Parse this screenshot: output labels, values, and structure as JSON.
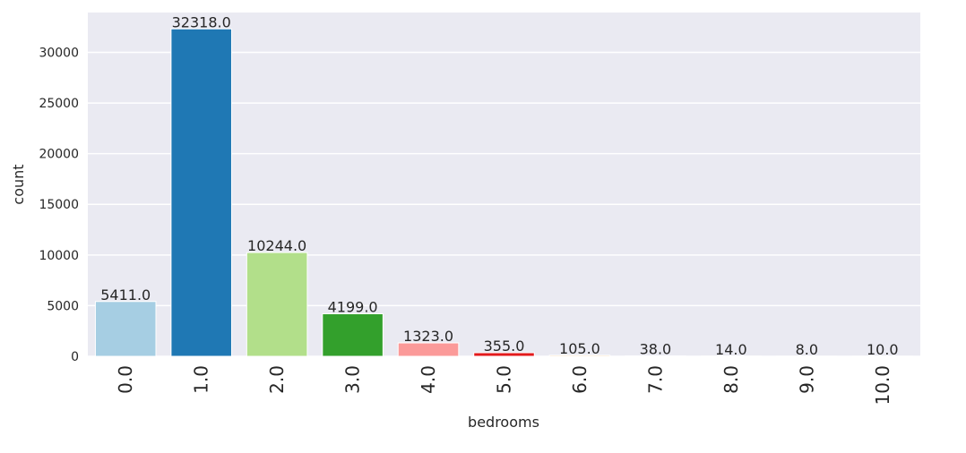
{
  "chart_data": {
    "type": "bar",
    "categories": [
      "0.0",
      "1.0",
      "2.0",
      "3.0",
      "4.0",
      "5.0",
      "6.0",
      "7.0",
      "8.0",
      "9.0",
      "10.0"
    ],
    "values": [
      5411,
      32318,
      10244,
      4199,
      1323,
      355,
      105,
      38,
      14,
      8,
      10
    ],
    "data_labels": [
      "5411.0",
      "32318.0",
      "10244.0",
      "4199.0",
      "1323.0",
      "355.0",
      "105.0",
      "38.0",
      "14.0",
      "8.0",
      "10.0"
    ],
    "colors": [
      "#a6cee3",
      "#1f78b4",
      "#b2df8a",
      "#33a02c",
      "#fb9a99",
      "#e31a1c",
      "#fdbf6f",
      "#ff7f00",
      "#cab2d6",
      "#6a3d9a",
      "#ffff99"
    ],
    "xlabel": "bedrooms",
    "ylabel": "count",
    "ylim": [
      0,
      33932
    ],
    "yticks": [
      0,
      5000,
      10000,
      15000,
      20000,
      25000,
      30000
    ],
    "grid": true,
    "background": "#eaeaf2"
  }
}
